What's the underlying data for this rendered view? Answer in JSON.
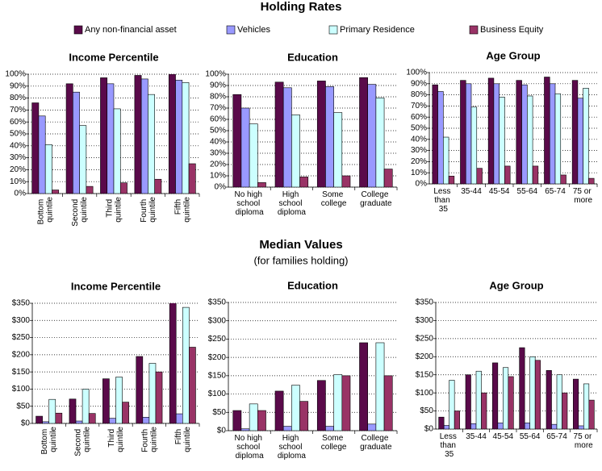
{
  "sections": [
    {
      "title": "Holding Rates"
    },
    {
      "title": "Median Values",
      "subtitle": "(for families holding)"
    }
  ],
  "legend": [
    {
      "name": "Any non-financial asset",
      "color": "#5a0a4a"
    },
    {
      "name": "Vehicles",
      "color": "#9999ff"
    },
    {
      "name": "Primary Residence",
      "color": "#ccffff"
    },
    {
      "name": "Business Equity",
      "color": "#993366"
    }
  ],
  "chart_data": [
    {
      "type": "bar",
      "title": "Income Percentile",
      "categories": [
        "Bottom quintile",
        "Second quintile",
        "Third quintile",
        "Fourth quintile",
        "Fifth quintile"
      ],
      "series": [
        {
          "values": [
            76,
            92,
            97,
            99,
            100
          ]
        },
        {
          "values": [
            65,
            85,
            92,
            96,
            95
          ]
        },
        {
          "values": [
            41,
            57,
            71,
            83,
            93
          ]
        },
        {
          "values": [
            3,
            6,
            9,
            12,
            25
          ]
        }
      ],
      "ylim": [
        0,
        100
      ],
      "yticks": [
        {
          "value": 0,
          "label": "0%"
        },
        {
          "value": 10,
          "label": "10%"
        },
        {
          "value": 20,
          "label": "20%"
        },
        {
          "value": 30,
          "label": "30%"
        },
        {
          "value": 40,
          "label": "40%"
        },
        {
          "value": 50,
          "label": "50%"
        },
        {
          "value": 60,
          "label": "60%"
        },
        {
          "value": 70,
          "label": "70%"
        },
        {
          "value": 80,
          "label": "80%"
        },
        {
          "value": 90,
          "label": "90%"
        },
        {
          "value": 100,
          "label": "100%"
        }
      ],
      "grid": true
    },
    {
      "type": "bar",
      "title": "Education",
      "categories": [
        "No high school diploma",
        "High school diploma",
        "Some college",
        "College graduate"
      ],
      "series": [
        {
          "values": [
            82,
            93,
            94,
            97
          ]
        },
        {
          "values": [
            70,
            88,
            89,
            91
          ]
        },
        {
          "values": [
            56,
            64,
            66,
            79
          ]
        },
        {
          "values": [
            4,
            9,
            10,
            16
          ]
        }
      ],
      "ylim": [
        0,
        100
      ],
      "yticks": [
        {
          "value": 0,
          "label": "0%"
        },
        {
          "value": 10,
          "label": "10%"
        },
        {
          "value": 20,
          "label": "20%"
        },
        {
          "value": 30,
          "label": "30%"
        },
        {
          "value": 40,
          "label": "40%"
        },
        {
          "value": 50,
          "label": "50%"
        },
        {
          "value": 60,
          "label": "60%"
        },
        {
          "value": 70,
          "label": "70%"
        },
        {
          "value": 80,
          "label": "80%"
        },
        {
          "value": 90,
          "label": "90%"
        },
        {
          "value": 100,
          "label": "100%"
        }
      ],
      "grid": true
    },
    {
      "type": "bar",
      "title": "Age Group",
      "categories": [
        "Less than 35",
        "35-44",
        "45-54",
        "55-64",
        "65-74",
        "75 or more"
      ],
      "series": [
        {
          "values": [
            89,
            93,
            95,
            93,
            96,
            93
          ]
        },
        {
          "values": [
            83,
            90,
            90,
            89,
            90,
            77
          ]
        },
        {
          "values": [
            42,
            69,
            78,
            79,
            81,
            86
          ]
        },
        {
          "values": [
            7,
            14,
            16,
            16,
            8,
            5
          ]
        }
      ],
      "ylim": [
        0,
        100
      ],
      "yticks": [
        {
          "value": 0,
          "label": "0%"
        },
        {
          "value": 10,
          "label": "10%"
        },
        {
          "value": 20,
          "label": "20%"
        },
        {
          "value": 30,
          "label": "30%"
        },
        {
          "value": 40,
          "label": "40%"
        },
        {
          "value": 50,
          "label": "50%"
        },
        {
          "value": 60,
          "label": "60%"
        },
        {
          "value": 70,
          "label": "70%"
        },
        {
          "value": 80,
          "label": "80%"
        },
        {
          "value": 90,
          "label": "90%"
        },
        {
          "value": 100,
          "label": "100%"
        }
      ],
      "grid": true
    },
    {
      "type": "bar",
      "title": "Income Percentile",
      "categories": [
        "Bottom quintile",
        "Second quintile",
        "Third quintile",
        "Fourth quintile",
        "Fifth quintile"
      ],
      "series": [
        {
          "values": [
            21,
            71,
            130,
            195,
            355
          ]
        },
        {
          "values": [
            5,
            7,
            15,
            18,
            28
          ]
        },
        {
          "values": [
            70,
            100,
            135,
            175,
            338
          ]
        },
        {
          "values": [
            30,
            29,
            62,
            150,
            222
          ]
        }
      ],
      "ylim": [
        0,
        350
      ],
      "yticks": [
        {
          "value": 0,
          "label": "$0"
        },
        {
          "value": 50,
          "label": "$50"
        },
        {
          "value": 100,
          "label": "$100"
        },
        {
          "value": 150,
          "label": "$150"
        },
        {
          "value": 200,
          "label": "$200"
        },
        {
          "value": 250,
          "label": "$250"
        },
        {
          "value": 300,
          "label": "$300"
        },
        {
          "value": 350,
          "label": "$350"
        }
      ],
      "grid": true
    },
    {
      "type": "bar",
      "title": "Education",
      "categories": [
        "No high school diploma",
        "High school diploma",
        "Some college",
        "College graduate"
      ],
      "series": [
        {
          "values": [
            55,
            108,
            137,
            240
          ]
        },
        {
          "values": [
            5,
            12,
            12,
            18
          ]
        },
        {
          "values": [
            73,
            124,
            153,
            240
          ]
        },
        {
          "values": [
            55,
            80,
            150,
            150
          ]
        }
      ],
      "ylim": [
        0,
        350
      ],
      "yticks": [
        {
          "value": 0,
          "label": "$0"
        },
        {
          "value": 50,
          "label": "$50"
        },
        {
          "value": 100,
          "label": "$100"
        },
        {
          "value": 150,
          "label": "$150"
        },
        {
          "value": 200,
          "label": "$200"
        },
        {
          "value": 250,
          "label": "$250"
        },
        {
          "value": 300,
          "label": "$300"
        },
        {
          "value": 350,
          "label": "$350"
        }
      ],
      "grid": true
    },
    {
      "type": "bar",
      "title": "Age Group",
      "categories": [
        "Less than 35",
        "35-44",
        "45-54",
        "55-64",
        "65-74",
        "75 or more"
      ],
      "series": [
        {
          "values": [
            33,
            150,
            183,
            225,
            162,
            138
          ]
        },
        {
          "values": [
            10,
            15,
            17,
            17,
            13,
            9
          ]
        },
        {
          "values": [
            135,
            160,
            170,
            200,
            150,
            125
          ]
        },
        {
          "values": [
            50,
            100,
            145,
            190,
            100,
            80
          ]
        }
      ],
      "ylim": [
        0,
        350
      ],
      "yticks": [
        {
          "value": 0,
          "label": "$0"
        },
        {
          "value": 50,
          "label": "$50"
        },
        {
          "value": 100,
          "label": "$100"
        },
        {
          "value": 150,
          "label": "$150"
        },
        {
          "value": 200,
          "label": "$200"
        },
        {
          "value": 250,
          "label": "$250"
        },
        {
          "value": 300,
          "label": "$300"
        },
        {
          "value": 350,
          "label": "$350"
        }
      ],
      "grid": true
    }
  ]
}
